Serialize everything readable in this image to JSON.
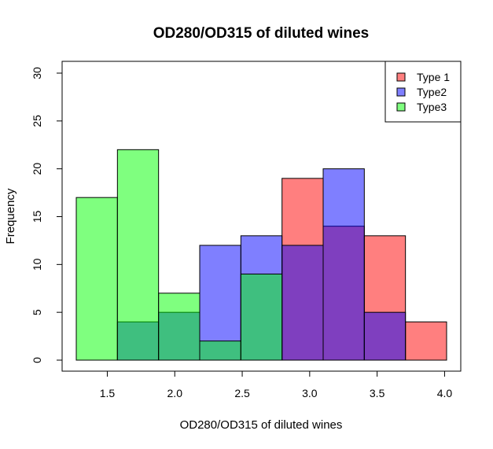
{
  "chart_data": {
    "type": "bar",
    "title": "OD280/OD315 of diluted wines",
    "xlabel": "OD280/OD315 of diluted wines",
    "ylabel": "Frequency",
    "xlim": [
      1.2,
      4.1
    ],
    "ylim": [
      0,
      31
    ],
    "x_ticks": [
      "1.5",
      "2.0",
      "2.5",
      "3.0",
      "3.5",
      "4.0"
    ],
    "x_tick_values": [
      1.5,
      2.0,
      2.5,
      3.0,
      3.5,
      4.0
    ],
    "y_ticks": [
      "0",
      "5",
      "10",
      "15",
      "20",
      "25",
      "30"
    ],
    "y_tick_values": [
      0,
      5,
      10,
      15,
      20,
      25,
      30
    ],
    "bin_edges": [
      1.27,
      1.575,
      1.88,
      2.185,
      2.49,
      2.795,
      3.1,
      3.405,
      3.71,
      4.015
    ],
    "series": [
      {
        "name": "Type 1",
        "color": "#ff0000",
        "alpha": 0.5,
        "values": [
          0,
          0,
          0,
          0,
          0,
          19,
          14,
          13,
          4
        ]
      },
      {
        "name": "Type2",
        "color": "#0000ff",
        "alpha": 0.5,
        "values": [
          0,
          4,
          5,
          12,
          13,
          12,
          20,
          5,
          0
        ]
      },
      {
        "name": "Type3",
        "color": "#00ff00",
        "alpha": 0.5,
        "values": [
          17,
          22,
          7,
          2,
          9,
          0,
          0,
          0,
          0
        ]
      }
    ],
    "legend": {
      "position": "top-right",
      "entries": [
        "Type 1",
        "Type2",
        "Type3"
      ]
    },
    "grid": false
  }
}
